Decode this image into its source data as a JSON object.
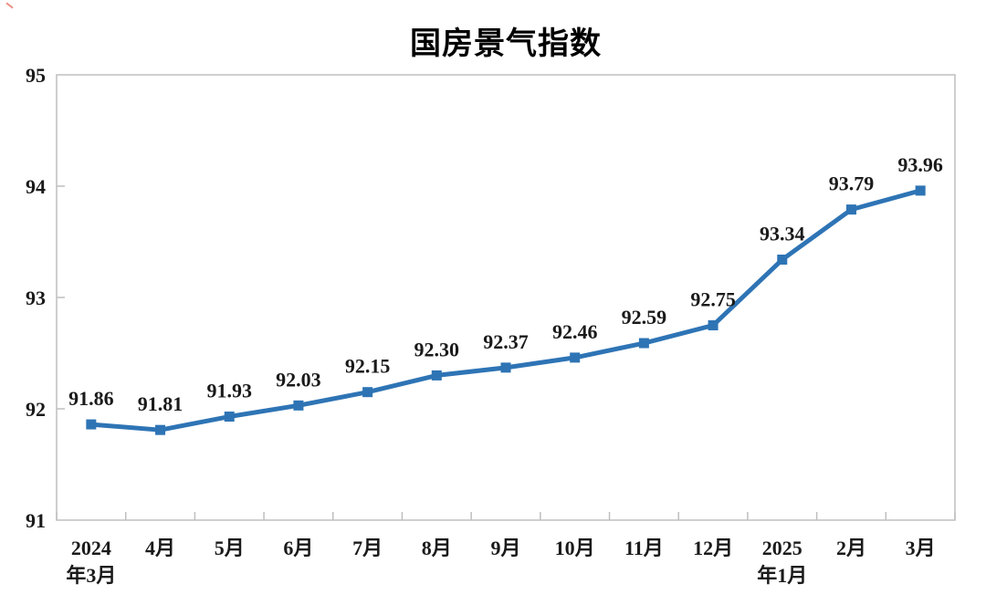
{
  "chart_data": {
    "type": "line",
    "title": "国房景气指数",
    "categories": [
      "2024年3月",
      "4月",
      "5月",
      "6月",
      "7月",
      "8月",
      "9月",
      "10月",
      "11月",
      "12月",
      "2025年1月",
      "2月",
      "3月"
    ],
    "series": [
      {
        "name": "国房景气指数",
        "values": [
          91.86,
          91.81,
          91.93,
          92.03,
          92.15,
          92.3,
          92.37,
          92.46,
          92.59,
          92.75,
          93.34,
          93.79,
          93.96
        ]
      }
    ],
    "data_labels": [
      "91.86",
      "91.81",
      "91.93",
      "92.03",
      "92.15",
      "92.30",
      "92.37",
      "92.46",
      "92.59",
      "92.75",
      "93.34",
      "93.79",
      "93.96"
    ],
    "yticks": [
      "91",
      "92",
      "93",
      "94",
      "95"
    ],
    "ylim": [
      91,
      95
    ],
    "ytick_interval": 1,
    "xlabel": "",
    "ylabel": "",
    "grid": false,
    "legend": "none",
    "line_color": "#2E74B5",
    "marker": "square",
    "label_color": "#1a1a1a",
    "axis_color": "#bfbfbf"
  }
}
